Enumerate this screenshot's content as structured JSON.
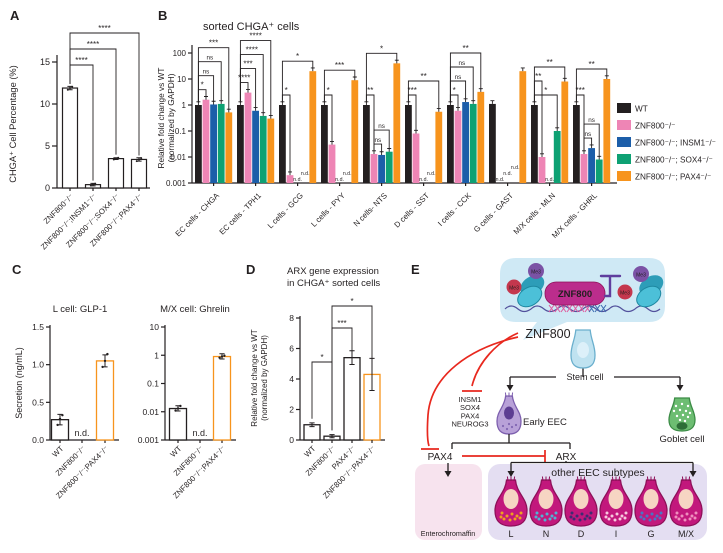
{
  "figure_labels": {
    "a": "A",
    "b": "B",
    "c": "C",
    "d": "D",
    "e": "E"
  },
  "nd_label": "n.d.",
  "series_colors": {
    "wt": "#231f20",
    "znf800": "#ee85b5",
    "insm1": "#1c5ea9",
    "sox4": "#0ea173",
    "pax4": "#f7941d"
  },
  "category_label_colors": {
    "ec": "#ed268f",
    "other": "#7b3f99"
  },
  "chart_data": [
    {
      "id": "a",
      "type": "bar",
      "title": "",
      "ylabel": "CHGA⁺ Cell Percentage (%)",
      "yscale": "linear",
      "ylim": [
        0,
        15
      ],
      "yticks": [
        0,
        5,
        10,
        15
      ],
      "ytick_labels": [
        "0",
        "5",
        "10",
        "15"
      ],
      "categories": [
        "ZNF800⁻/⁻",
        "ZNF800⁻/⁻;INSM1⁻/⁻",
        "ZNF800⁻/⁻;SOX4⁻/⁻",
        "ZNF800⁻/⁻;PAX4⁻/⁻"
      ],
      "values": [
        11.9,
        0.4,
        3.5,
        3.4
      ],
      "errors": [
        0.2,
        0.15,
        0.1,
        0.2
      ],
      "dots": [
        [
          11.7,
          11.9,
          12.05
        ],
        [
          0.3,
          0.42,
          0.52
        ],
        [
          3.4,
          3.5,
          3.6
        ],
        [
          3.2,
          3.4,
          3.55
        ]
      ],
      "sig": [
        {
          "from": 0,
          "to": 1,
          "label": "****"
        },
        {
          "from": 0,
          "to": 2,
          "label": "****"
        },
        {
          "from": 0,
          "to": 3,
          "label": "****"
        }
      ]
    },
    {
      "id": "b",
      "type": "bar",
      "title": "sorted CHGA⁺ cells",
      "ylabel_lines": [
        "Relative fold change vs WT",
        "(normalized by GAPDH)"
      ],
      "yscale": "log",
      "ylim": [
        0.001,
        100
      ],
      "yticks": [
        0.001,
        0.01,
        0.1,
        1,
        10,
        100
      ],
      "ytick_labels": [
        "0.001",
        "0.01",
        "0.1",
        "1",
        "10",
        "100"
      ],
      "categories": [
        {
          "label": "EC cells - CHGA",
          "color_key": "ec"
        },
        {
          "label": "EC cells - TPH1",
          "color_key": "ec"
        },
        {
          "label": "L cells - GCG",
          "color_key": "other"
        },
        {
          "label": "L cells - PYY",
          "color_key": "other"
        },
        {
          "label": "N cells- NTS",
          "color_key": "other"
        },
        {
          "label": "D cells - SST",
          "color_key": "other"
        },
        {
          "label": "I cells - CCK",
          "color_key": "other"
        },
        {
          "label": "G cells - GAST",
          "color_key": "other"
        },
        {
          "label": "M/X cells - MLN",
          "color_key": "other"
        },
        {
          "label": "M/X cells - GHRL",
          "color_key": "other"
        }
      ],
      "series": [
        {
          "name": "WT",
          "color_key": "wt",
          "values": [
            1,
            1,
            1,
            1,
            1,
            1,
            1,
            1.1,
            1,
            1
          ]
        },
        {
          "name": "ZNF800⁻/⁻",
          "color_key": "znf800",
          "values": [
            1.6,
            3,
            0.002,
            0.03,
            0.013,
            0.08,
            0.6,
            null,
            0.01,
            0.013
          ]
        },
        {
          "name": "ZNF800⁻/⁻; INSM1⁻/⁻",
          "color_key": "insm1",
          "values": [
            1.05,
            0.6,
            null,
            null,
            0.012,
            null,
            1.3,
            null,
            null,
            0.022
          ]
        },
        {
          "name": "ZNF800⁻/⁻; SOX4⁻/⁻",
          "color_key": "sox4",
          "values": [
            1.1,
            0.38,
            null,
            null,
            0.016,
            null,
            1.1,
            null,
            0.1,
            0.008
          ]
        },
        {
          "name": "ZNF800⁻/⁻; PAX4⁻/⁻",
          "color_key": "pax4",
          "values": [
            0.52,
            0.3,
            20,
            9,
            40,
            0.55,
            3.2,
            20,
            8,
            10
          ]
        }
      ],
      "sig_by_group": [
        [
          {
            "from": 0,
            "to": 1,
            "label": "*"
          },
          {
            "from": 0,
            "to": 2,
            "label": "ns"
          },
          {
            "from": 0,
            "to": 3,
            "label": "ns"
          },
          {
            "from": 0,
            "to": 4,
            "label": "***"
          }
        ],
        [
          {
            "from": 0,
            "to": 1,
            "label": "****"
          },
          {
            "from": 0,
            "to": 2,
            "label": "***"
          },
          {
            "from": 0,
            "to": 3,
            "label": "****"
          },
          {
            "from": 0,
            "to": 4,
            "label": "****"
          }
        ],
        [
          {
            "from": 0,
            "to": 1,
            "label": "*"
          },
          {
            "from": 0,
            "to": 4,
            "label": "*"
          }
        ],
        [
          {
            "from": 0,
            "to": 1,
            "label": "*"
          },
          {
            "from": 0,
            "to": 4,
            "label": "***"
          }
        ],
        [
          {
            "from": 1,
            "to": 2,
            "label": "ns"
          },
          {
            "from": 1,
            "to": 3,
            "label": "ns"
          },
          {
            "from": 0,
            "to": 1,
            "label": "**"
          },
          {
            "from": 0,
            "to": 4,
            "label": "*"
          }
        ],
        [
          {
            "from": 0,
            "to": 1,
            "label": "***"
          },
          {
            "from": 0,
            "to": 4,
            "label": "**"
          }
        ],
        [
          {
            "from": 0,
            "to": 1,
            "label": "*"
          },
          {
            "from": 0,
            "to": 2,
            "label": "ns"
          },
          {
            "from": 0,
            "to": 3,
            "label": "ns"
          },
          {
            "from": 0,
            "to": 4,
            "label": "**"
          }
        ],
        [],
        [
          {
            "from": 0,
            "to": 3,
            "label": "*"
          },
          {
            "from": 0,
            "to": 1,
            "label": "**"
          },
          {
            "from": 0,
            "to": 4,
            "label": "**"
          }
        ],
        [
          {
            "from": 1,
            "to": 2,
            "label": "ns"
          },
          {
            "from": 1,
            "to": 3,
            "label": "ns"
          },
          {
            "from": 0,
            "to": 1,
            "label": "***"
          },
          {
            "from": 0,
            "to": 4,
            "label": "**"
          }
        ]
      ],
      "legend": [
        "WT",
        "ZNF800⁻/⁻",
        "ZNF800⁻/⁻; INSM1⁻/⁻",
        "ZNF800⁻/⁻; SOX4⁻/⁻",
        "ZNF800⁻/⁻; PAX4⁻/⁻"
      ]
    },
    {
      "id": "c1",
      "type": "bar",
      "title": "L cell: GLP-1",
      "ylabel": "Secretion (ng/mL)",
      "yscale": "linear",
      "ylim": [
        0,
        1.5
      ],
      "yticks": [
        0,
        0.5,
        1,
        1.5
      ],
      "ytick_labels": [
        "0.0",
        "0.5",
        "1.0",
        "1.5"
      ],
      "categories": [
        "WT",
        "ZNF800⁻/⁻",
        "ZNF800⁻/⁻;PAX4⁻/⁻"
      ],
      "values": [
        0.27,
        null,
        1.05
      ],
      "errors": [
        0.07,
        0,
        0.08
      ],
      "dots": [
        [
          0.2,
          0.28,
          0.33
        ],
        null,
        [
          0.97,
          1.05,
          1.14
        ]
      ],
      "bar_color_keys": [
        "wt",
        null,
        "pax4"
      ]
    },
    {
      "id": "c2",
      "type": "bar",
      "title": "M/X cell: Ghrelin",
      "yscale": "log",
      "ylim": [
        0.001,
        10
      ],
      "yticks": [
        0.001,
        0.01,
        0.1,
        1,
        10
      ],
      "ytick_labels": [
        "0.001",
        "0.01",
        "0.1",
        "1",
        "10"
      ],
      "categories": [
        "WT",
        "ZNF800⁻/⁻",
        "ZNF800⁻/⁻;PAX4⁻/⁻"
      ],
      "values": [
        0.013,
        null,
        0.9
      ],
      "dots": [
        [
          0.011,
          0.013,
          0.016
        ],
        null,
        [
          0.82,
          0.9,
          0.96
        ]
      ],
      "bar_color_keys": [
        "wt",
        null,
        "pax4"
      ]
    },
    {
      "id": "d",
      "type": "bar",
      "title_lines": [
        "ARX gene expression",
        "in CHGA⁺ sorted cells"
      ],
      "ylabel_lines": [
        "Relative fold change vs WT",
        "(normalized by GAPDH)"
      ],
      "yscale": "linear",
      "ylim": [
        0,
        8
      ],
      "yticks": [
        0,
        2,
        4,
        6,
        8
      ],
      "ytick_labels": [
        "0",
        "2",
        "4",
        "6",
        "8"
      ],
      "categories": [
        "WT",
        "ZNF800⁻/⁻",
        "PAX4⁻/⁻",
        "ZNF800⁻/⁻;PAX4⁻/⁻"
      ],
      "values": [
        1,
        0.25,
        5.4,
        4.3
      ],
      "errors": [
        0.12,
        0.1,
        0.45,
        1.05
      ],
      "bar_color_keys": [
        "wt",
        "wt",
        "wt",
        "pax4"
      ],
      "sig": [
        {
          "from": 0,
          "to": 1,
          "label": "*"
        },
        {
          "from": 1,
          "to": 2,
          "label": "***"
        },
        {
          "from": 1,
          "to": 3,
          "label": "*"
        }
      ]
    }
  ],
  "panel_e": {
    "me3": "Me3",
    "znf800_box": "ZNF800",
    "znf800_label": "ZNF800",
    "stem_cell": "Stem cell",
    "early_eec": "Early EEC",
    "goblet_cell": "Goblet cell",
    "tf_list": [
      "INSM1",
      "SOX4",
      "PAX4",
      "NEUROG3"
    ],
    "pax4": "PAX4",
    "arx": "ARX",
    "enterochromaffin": "Enterochromaffin",
    "other_subtypes": "other EEC subtypes",
    "eec_cells": [
      {
        "label": "L",
        "granule": "#f0a11e"
      },
      {
        "label": "N",
        "granule": "#4fb3d5"
      },
      {
        "label": "D",
        "granule": "#3f2a72"
      },
      {
        "label": "I",
        "granule": "#f7c9de"
      },
      {
        "label": "G",
        "granule": "#4a74c6"
      },
      {
        "label": "M/X",
        "granule": "#ef8fbe"
      }
    ]
  }
}
